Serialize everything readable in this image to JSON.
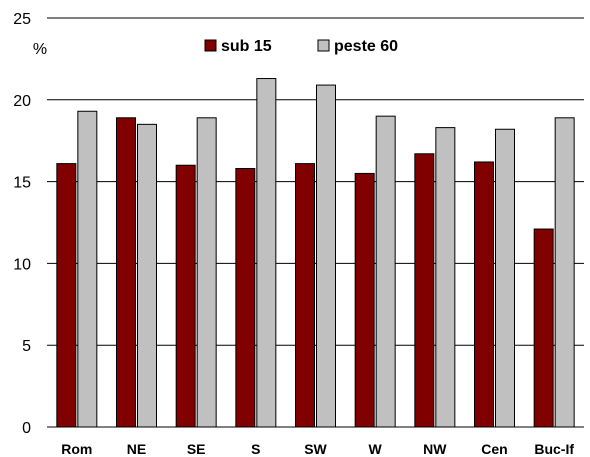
{
  "chart_data": {
    "type": "bar",
    "ylabel": "%",
    "ylim": [
      0,
      25
    ],
    "yticks": [
      "0",
      "5",
      "10",
      "15",
      "20",
      "25"
    ],
    "grid": true,
    "legend_position": "top-center",
    "categories": [
      "Rom",
      "NE",
      "SE",
      "S",
      "SW",
      "W",
      "NW",
      "Cen",
      "Buc-If"
    ],
    "series": [
      {
        "name": "sub 15",
        "color": "#800000",
        "values": [
          16.1,
          18.9,
          16.0,
          15.8,
          16.1,
          15.5,
          16.7,
          16.2,
          12.1
        ]
      },
      {
        "name": "peste 60",
        "color": "#c0c0c0",
        "values": [
          19.3,
          18.5,
          18.9,
          21.3,
          20.9,
          19.0,
          18.3,
          18.2,
          18.9
        ]
      }
    ]
  }
}
